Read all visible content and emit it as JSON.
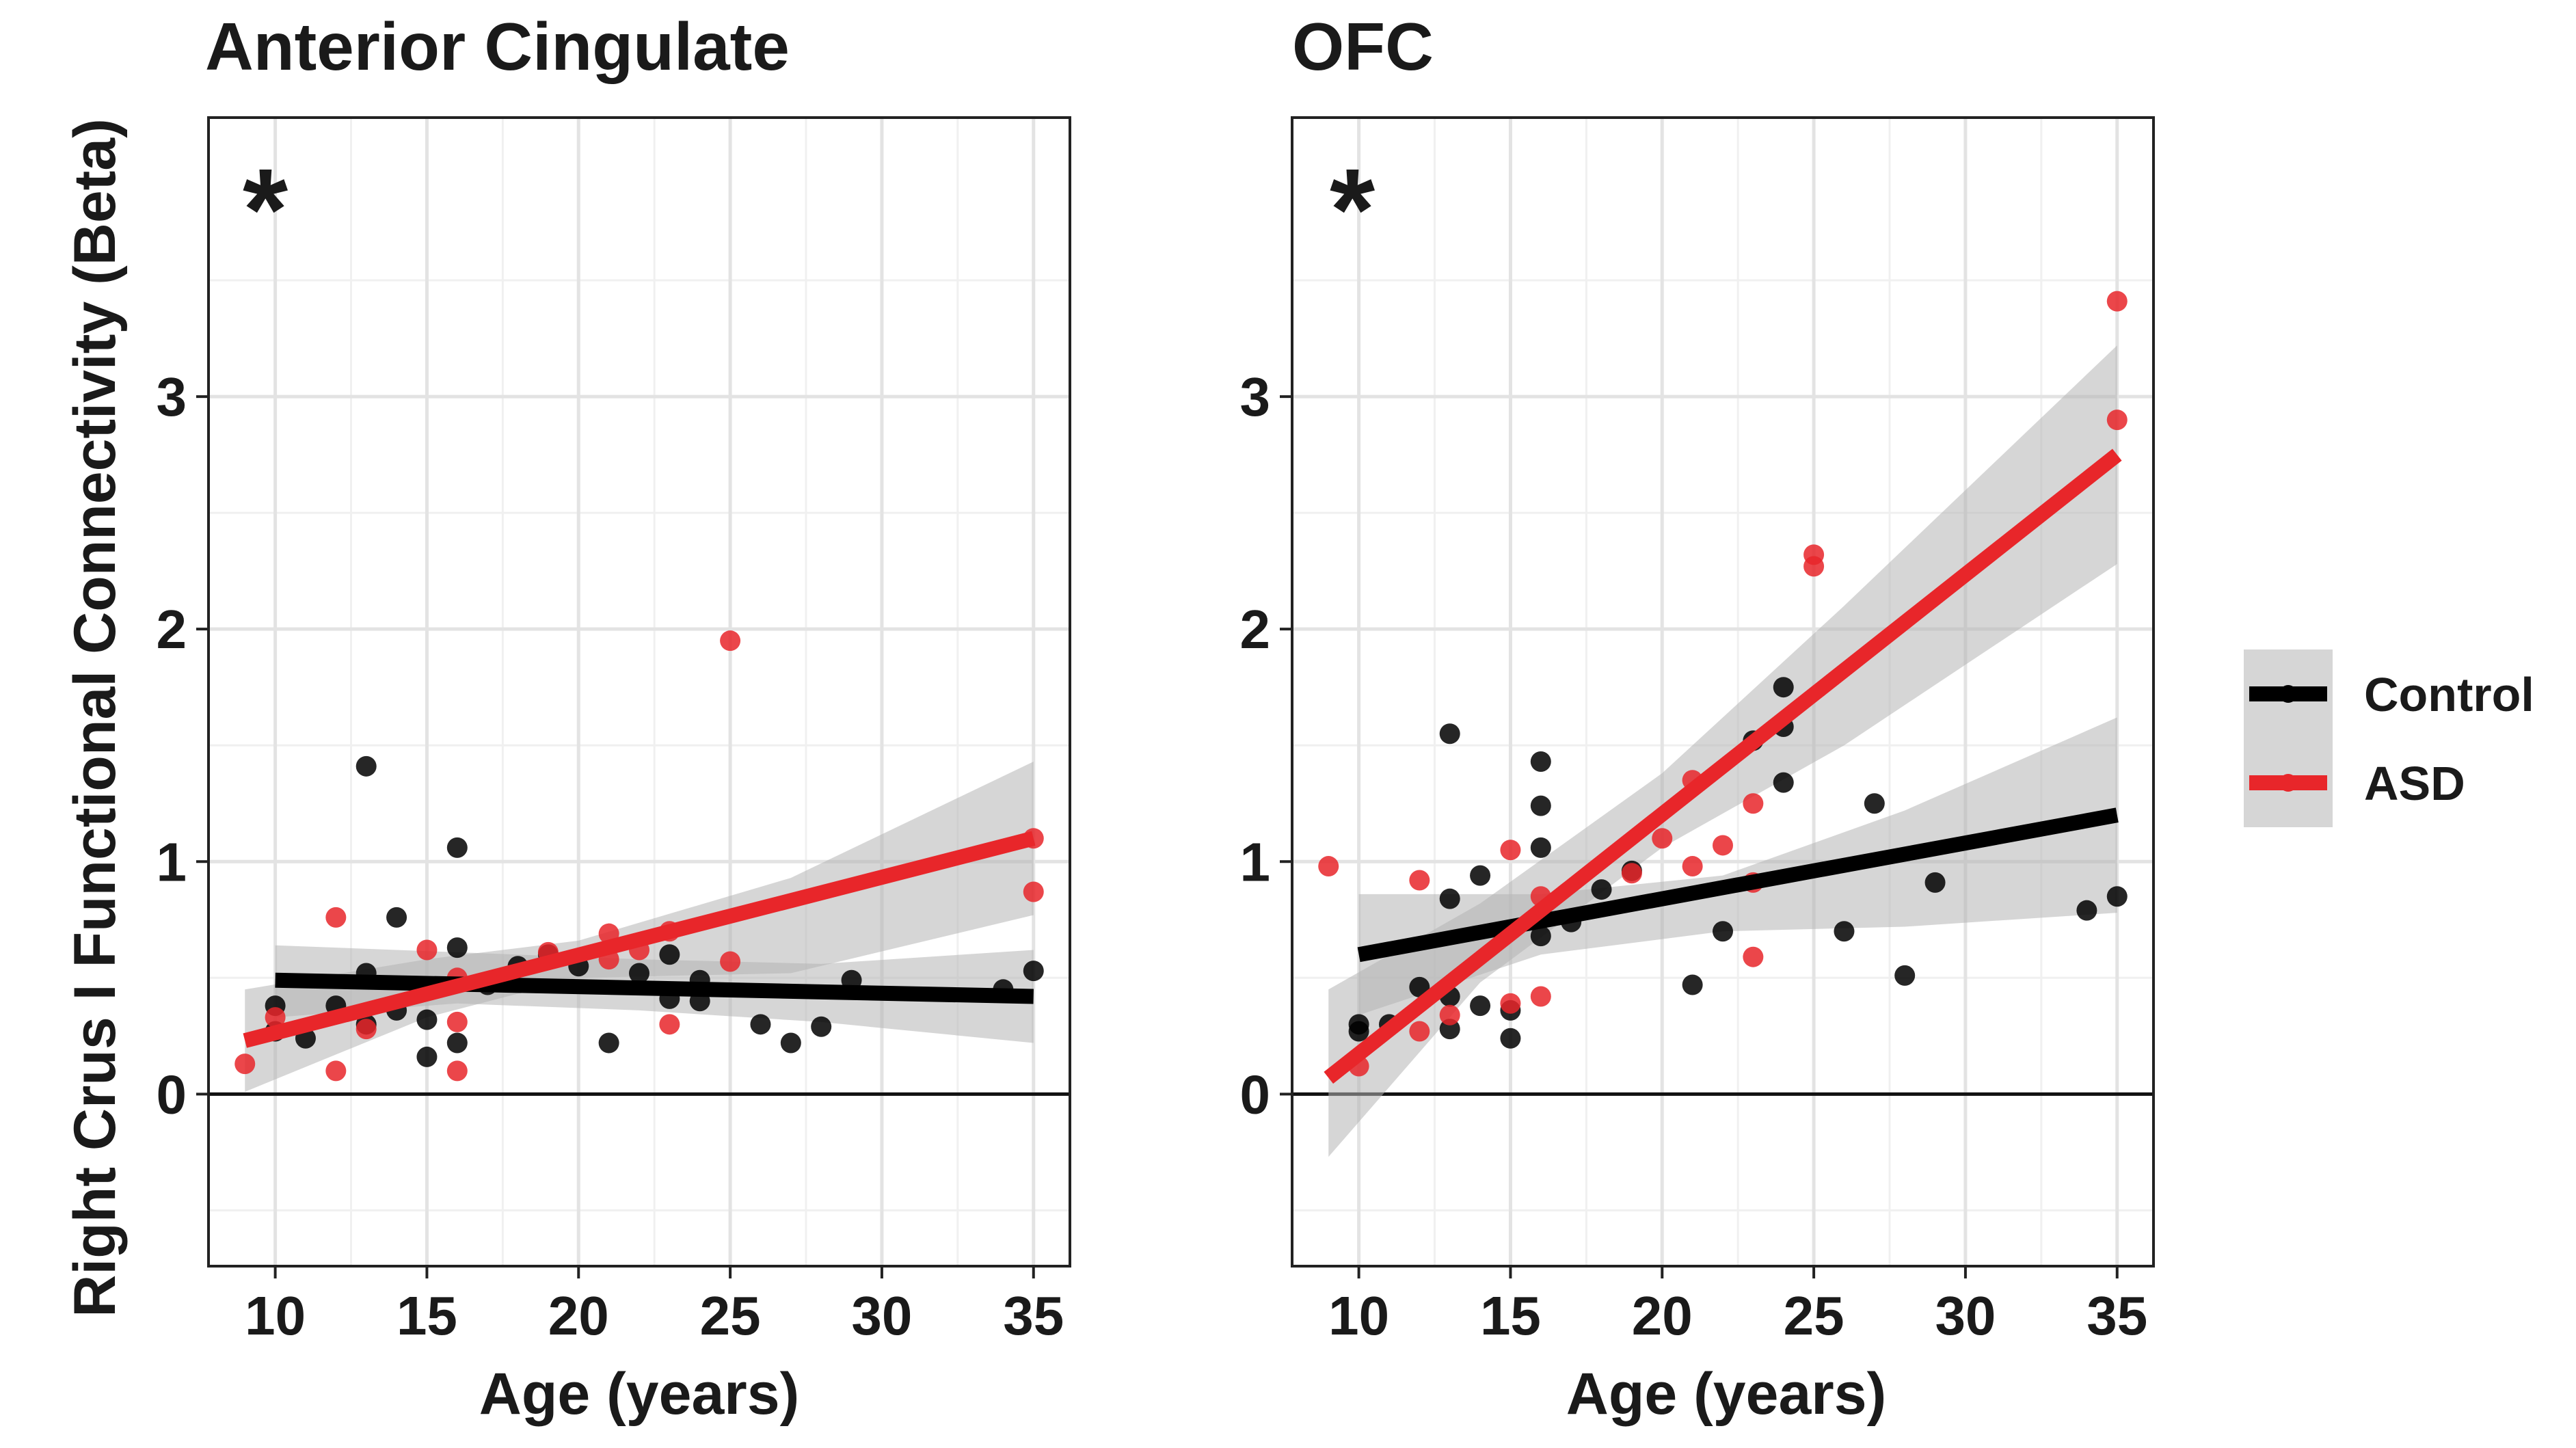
{
  "figure": {
    "ylabel": "Right Crus I Functional Connectivity (Beta)",
    "xlabel": "Age (years)"
  },
  "legend": {
    "placement": "right",
    "entries": [
      {
        "name": "Control",
        "color": "#000000"
      },
      {
        "name": "ASD",
        "color": "#e8262a"
      }
    ]
  },
  "chart_data": [
    {
      "type": "scatter",
      "title": "Anterior Cingulate",
      "annotation": "*",
      "xlabel": "Age (years)",
      "ylabel": "Right Crus I Functional Connectivity (Beta)",
      "xlim": [
        7.8,
        36.2
      ],
      "ylim": [
        -0.74,
        4.2
      ],
      "xticks": [
        10,
        15,
        20,
        25,
        30,
        35
      ],
      "yticks": [
        0,
        1,
        2,
        3
      ],
      "grid": true,
      "hline": 0,
      "series": [
        {
          "name": "Control",
          "color": "#000000",
          "points": [
            [
              10,
              0.27
            ],
            [
              10,
              0.38
            ],
            [
              11,
              0.24
            ],
            [
              12,
              0.38
            ],
            [
              13,
              1.41
            ],
            [
              13,
              0.52
            ],
            [
              13,
              0.3
            ],
            [
              14,
              0.76
            ],
            [
              14,
              0.36
            ],
            [
              15,
              0.16
            ],
            [
              15,
              0.32
            ],
            [
              16,
              1.06
            ],
            [
              16,
              0.63
            ],
            [
              16,
              0.22
            ],
            [
              17,
              0.47
            ],
            [
              18,
              0.55
            ],
            [
              19,
              0.6
            ],
            [
              20,
              0.55
            ],
            [
              21,
              0.22
            ],
            [
              22,
              0.52
            ],
            [
              23,
              0.41
            ],
            [
              23,
              0.6
            ],
            [
              24,
              0.49
            ],
            [
              24,
              0.4
            ],
            [
              26,
              0.3
            ],
            [
              27,
              0.22
            ],
            [
              28,
              0.29
            ],
            [
              29,
              0.49
            ],
            [
              34,
              0.45
            ],
            [
              35,
              0.53
            ]
          ],
          "fit": {
            "x": [
              10,
              35
            ],
            "y": [
              0.49,
              0.42
            ]
          },
          "ci_upper": [
            0.64,
            0.61,
            0.58,
            0.56,
            0.62
          ],
          "ci_lower": [
            0.33,
            0.39,
            0.36,
            0.31,
            0.22
          ],
          "ci_x": [
            10,
            16,
            22,
            28,
            35
          ]
        },
        {
          "name": "ASD",
          "color": "#e8262a",
          "points": [
            [
              9,
              0.13
            ],
            [
              10,
              0.33
            ],
            [
              12,
              0.76
            ],
            [
              12,
              0.1
            ],
            [
              13,
              0.28
            ],
            [
              15,
              0.62
            ],
            [
              16,
              0.5
            ],
            [
              16,
              0.31
            ],
            [
              16,
              0.1
            ],
            [
              19,
              0.61
            ],
            [
              21,
              0.69
            ],
            [
              21,
              0.58
            ],
            [
              22,
              0.62
            ],
            [
              23,
              0.3
            ],
            [
              23,
              0.7
            ],
            [
              25,
              1.95
            ],
            [
              25,
              0.57
            ],
            [
              35,
              1.1
            ],
            [
              35,
              0.87
            ]
          ],
          "fit": {
            "x": [
              9,
              35
            ],
            "y": [
              0.23,
              1.1
            ]
          },
          "ci_upper": [
            0.45,
            0.58,
            0.66,
            0.93,
            1.43
          ],
          "ci_lower": [
            0.01,
            0.33,
            0.5,
            0.52,
            0.77
          ],
          "ci_x": [
            9,
            15,
            20,
            27,
            35
          ]
        }
      ]
    },
    {
      "type": "scatter",
      "title": "OFC",
      "annotation": "*",
      "xlabel": "Age (years)",
      "xlim": [
        7.8,
        36.2
      ],
      "ylim": [
        -0.74,
        4.2
      ],
      "xticks": [
        10,
        15,
        20,
        25,
        30,
        35
      ],
      "yticks": [
        0,
        1,
        2,
        3
      ],
      "grid": true,
      "hline": 0,
      "series": [
        {
          "name": "Control",
          "color": "#000000",
          "points": [
            [
              10,
              0.27
            ],
            [
              10,
              0.3
            ],
            [
              11,
              0.3
            ],
            [
              12,
              0.46
            ],
            [
              13,
              1.55
            ],
            [
              13,
              0.84
            ],
            [
              13,
              0.28
            ],
            [
              13,
              0.42
            ],
            [
              14,
              0.38
            ],
            [
              14,
              0.94
            ],
            [
              15,
              0.24
            ],
            [
              15,
              0.36
            ],
            [
              16,
              1.43
            ],
            [
              16,
              1.24
            ],
            [
              16,
              1.06
            ],
            [
              16,
              0.68
            ],
            [
              17,
              0.74
            ],
            [
              18,
              0.88
            ],
            [
              19,
              0.96
            ],
            [
              21,
              0.47
            ],
            [
              22,
              0.7
            ],
            [
              23,
              1.52
            ],
            [
              24,
              1.75
            ],
            [
              24,
              1.58
            ],
            [
              24,
              1.34
            ],
            [
              26,
              0.7
            ],
            [
              27,
              1.25
            ],
            [
              28,
              0.51
            ],
            [
              29,
              0.91
            ],
            [
              34,
              0.79
            ],
            [
              35,
              0.85
            ]
          ],
          "fit": {
            "x": [
              10,
              35
            ],
            "y": [
              0.6,
              1.2
            ]
          },
          "ci_upper": [
            0.86,
            0.86,
            0.94,
            1.22,
            1.62
          ],
          "ci_lower": [
            0.34,
            0.6,
            0.7,
            0.72,
            0.78
          ],
          "ci_x": [
            10,
            16,
            22,
            28,
            35
          ]
        },
        {
          "name": "ASD",
          "color": "#e8262a",
          "points": [
            [
              9,
              0.98
            ],
            [
              10,
              0.12
            ],
            [
              12,
              0.92
            ],
            [
              12,
              0.27
            ],
            [
              13,
              0.34
            ],
            [
              15,
              1.05
            ],
            [
              15,
              0.39
            ],
            [
              16,
              0.42
            ],
            [
              16,
              0.85
            ],
            [
              19,
              0.95
            ],
            [
              20,
              1.1
            ],
            [
              21,
              0.98
            ],
            [
              21,
              1.35
            ],
            [
              22,
              1.07
            ],
            [
              23,
              1.25
            ],
            [
              23,
              0.59
            ],
            [
              23,
              0.91
            ],
            [
              25,
              2.32
            ],
            [
              25,
              2.27
            ],
            [
              35,
              3.41
            ],
            [
              35,
              2.9
            ]
          ],
          "fit": {
            "x": [
              9,
              35
            ],
            "y": [
              0.07,
              2.75
            ]
          },
          "ci_upper": [
            0.45,
            0.82,
            1.38,
            2.1,
            3.22
          ],
          "ci_lower": [
            -0.27,
            0.48,
            1.06,
            1.5,
            2.28
          ],
          "ci_x": [
            9,
            14,
            20,
            26,
            35
          ]
        }
      ]
    }
  ]
}
